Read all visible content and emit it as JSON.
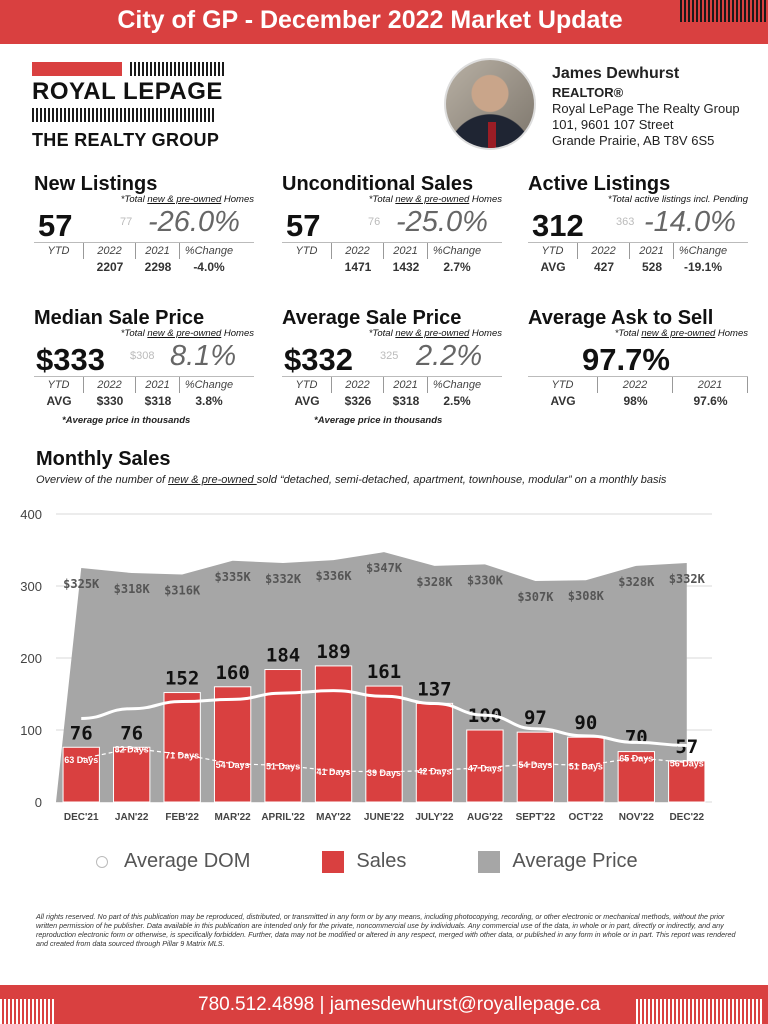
{
  "header": {
    "title": "City of GP - December 2022 Market Update",
    "accent_color": "#d94040"
  },
  "logo": {
    "brand": "ROYAL LEPAGE",
    "tagline": "THE REALTY GROUP"
  },
  "agent": {
    "name": "James Dewhurst",
    "role": "REALTOR®",
    "company": "Royal LePage The Realty Group",
    "address1": "101, 9601 107 Street",
    "address2": "Grande Prairie, AB T8V 6S5"
  },
  "stats": {
    "new_listings": {
      "title": "New Listings",
      "note_pre": "*Total ",
      "note_u": "new & pre-owned",
      "note_post": " Homes",
      "big": "57",
      "prev": "77",
      "pct": "-26.0%",
      "labels": [
        "YTD",
        "2022",
        "2021",
        "%Change"
      ],
      "values": [
        "",
        "2207",
        "2298",
        "-4.0%"
      ]
    },
    "unconditional_sales": {
      "title": "Unconditional Sales",
      "note_pre": "*Total ",
      "note_u": "new & pre-owned",
      "note_post": " Homes",
      "big": "57",
      "prev": "76",
      "pct": "-25.0%",
      "labels": [
        "YTD",
        "2022",
        "2021",
        "%Change"
      ],
      "values": [
        "",
        "1471",
        "1432",
        "2.7%"
      ]
    },
    "active_listings": {
      "title": "Active Listings",
      "note_pre": "*Total active listings incl. Pending",
      "note_u": "",
      "note_post": "",
      "big": "312",
      "prev": "363",
      "pct": "-14.0%",
      "labels": [
        "YTD",
        "2022",
        "2021",
        "%Change"
      ],
      "values": [
        "AVG",
        "427",
        "528",
        "-19.1%"
      ]
    },
    "median_price": {
      "title": "Median Sale Price",
      "note_pre": "*Total ",
      "note_u": "new & pre-owned",
      "note_post": " Homes",
      "big": "$333",
      "prev": "$308",
      "pct": "8.1%",
      "labels": [
        "YTD",
        "2022",
        "2021",
        "%Change"
      ],
      "values": [
        "AVG",
        "$330",
        "$318",
        "3.8%"
      ],
      "footnote": "*Average price in thousands"
    },
    "average_price": {
      "title": "Average Sale Price",
      "note_pre": "*Total ",
      "note_u": "new & pre-owned",
      "note_post": " Homes",
      "big": "$332",
      "prev": "325",
      "pct": "2.2%",
      "labels": [
        "YTD",
        "2022",
        "2021",
        "%Change"
      ],
      "values": [
        "AVG",
        "$326",
        "$318",
        "2.5%"
      ],
      "footnote": "*Average price in thousands"
    },
    "ask_to_sell": {
      "title": "Average Ask to Sell",
      "note_pre": "*Total ",
      "note_u": "new & pre-owned",
      "note_post": " Homes",
      "big": "97.7%",
      "labels": [
        "YTD",
        "2022",
        "2021"
      ],
      "values": [
        "AVG",
        "98%",
        "97.6%"
      ]
    }
  },
  "monthly": {
    "title": "Monthly Sales",
    "subtitle_pre": "Overview of the number of ",
    "subtitle_u": "new & pre-owned ",
    "subtitle_post": "sold “detached, semi-detached, apartment, townhouse, modular” on a monthly basis"
  },
  "chart_data": {
    "type": "bar",
    "categories": [
      "DEC'21",
      "JAN'22",
      "FEB'22",
      "MAR'22",
      "APRIL'22",
      "MAY'22",
      "JUNE'22",
      "JULY'22",
      "AUG'22",
      "SEPT'22",
      "OCT'22",
      "NOV'22",
      "DEC'22"
    ],
    "ylim": [
      0,
      400
    ],
    "yticks": [
      0,
      100,
      200,
      300,
      400
    ],
    "grid": true,
    "legend": "bottom",
    "series": [
      {
        "name": "Sales",
        "type": "bar",
        "color": "#d94040",
        "values": [
          76,
          76,
          152,
          160,
          184,
          189,
          161,
          137,
          100,
          97,
          90,
          70,
          57
        ],
        "labels": [
          "76",
          "76",
          "152",
          "160",
          "184",
          "189",
          "161",
          "137",
          "100",
          "97",
          "90",
          "70",
          "57"
        ]
      },
      {
        "name": "Average Price",
        "type": "area",
        "color": "#a6a6a6",
        "values": [
          325,
          318,
          316,
          335,
          332,
          336,
          347,
          328,
          330,
          307,
          308,
          328,
          332
        ],
        "labels": [
          "$325K",
          "$318K",
          "$316K",
          "$335K",
          "$332K",
          "$336K",
          "$347K",
          "$328K",
          "$330K",
          "$307K",
          "$308K",
          "$328K",
          "$332K"
        ]
      },
      {
        "name": "Average DOM",
        "type": "line",
        "color": "#ffffff",
        "values": [
          63,
          82,
          71,
          54,
          51,
          41,
          39,
          42,
          47,
          54,
          51,
          65,
          56
        ],
        "labels": [
          "63 Days",
          "82 Days",
          "71 Days",
          "54 Days",
          "51 Days",
          "41 Days",
          "39 Days",
          "42 Days",
          "47 Days",
          "54 Days",
          "51 Days",
          "65 Days",
          "56 Days"
        ]
      }
    ]
  },
  "legend": {
    "dom": "Average DOM",
    "sales": "Sales",
    "price": "Average Price"
  },
  "disclaimer": "All rights reserved. No part of this publication may be reproduced, distributed, or transmitted in any form or by any means, including photocopying, recording, or other electronic or mechanical methods, without the prior written permission of he publisher. Data available in this publication are intended only for the private, noncommercial use by individuals. Any commercial use of the data, in whole or in part, directly or indirectly, and any reproduction electronic form or otherwise, is specifically forbidden. Further, data may not be modified or altered in any respect, merged with other data, or published in any form in whole or in part. This report was rendered and created from data sourced through Pillar 9 Matrix MLS.",
  "footer": {
    "contact": "780.512.4898  |  jamesdewhurst@royallepage.ca"
  }
}
